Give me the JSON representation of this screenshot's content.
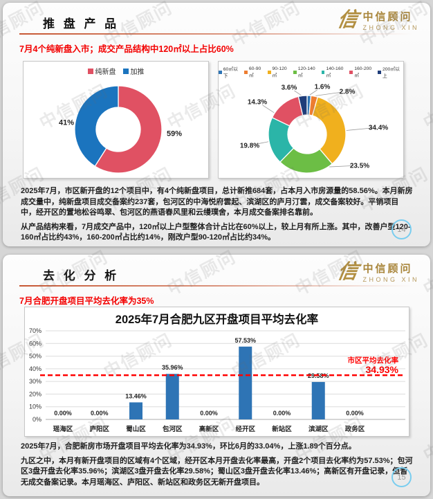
{
  "watermark_text": "中信顾问",
  "logo": {
    "mark": "信",
    "name_cn": "中信顾问",
    "name_en": "ZHONG XIN"
  },
  "slide1": {
    "title": "推 盘 产 品",
    "subtitle": "7月4个纯新盘入市；成交产品结构中120㎡以上占比60%",
    "paragraph1": "2025年7月，市区新开盘的12个项目中，有4个纯新盘项目，总计新推684套，占本月入市房源量的58.56%。本月新房成交量中，纯新盘项目成交备案约237套，包河区的中海悦府雲起、滨湖区的庐月汀雲，成交备案较好。平销项目中，经开区的置地松谷鸣翠、包河区的燕语春风里和云缦璞舍，本月成交备案排名靠前。",
    "paragraph2": "从产品结构来看，7月成交产品中，120㎡以上户型整体合计占比在60%以上，较上月有所上涨。其中，改善户型120-160㎡占比约43%，160-200㎡占比约14%，刚改户型90-120㎡占比约34%。",
    "page_number": "14"
  },
  "slide2": {
    "title": "去 化 分 析",
    "subtitle": "7月合肥开盘项目平均去化率为35%",
    "paragraph1": "2025年7月，合肥新房市场开盘项目平均去化率为34.93%，环比6月的33.04%，上涨1.89个百分点。",
    "paragraph2": "九区之中，本月有新开盘项目的区域有4个区域，经开区本月开盘去化率最高，开盘2个项目去化率约为57.53%；包河区3盘开盘去化率35.96%；滨湖区3盘开盘去化率29.58%；蜀山区3盘开盘去化率13.46%；高新区有开盘记录，但暂无成交备案记录。本月瑶海区、庐阳区、新站区和政务区无新开盘项目。",
    "page_number": "15"
  },
  "chart_data": [
    {
      "id": "new-vs-additional",
      "type": "pie",
      "donut": true,
      "legend_position": "top",
      "labels": [
        "纯新盘",
        "加推"
      ],
      "values": [
        59,
        41
      ],
      "value_labels": [
        "59%",
        "41%"
      ],
      "colors": [
        "#E05163",
        "#1B74BE"
      ]
    },
    {
      "id": "product-structure",
      "type": "pie",
      "donut": true,
      "legend_position": "top",
      "labels": [
        "60㎡以下",
        "60-90㎡",
        "90-120㎡",
        "120-140㎡",
        "140-160㎡",
        "160-200㎡",
        "200㎡以上"
      ],
      "values": [
        1.6,
        2.8,
        34.4,
        23.5,
        19.8,
        14.3,
        3.6
      ],
      "value_labels": [
        "1.6%",
        "2.8%",
        "34.4%",
        "23.5%",
        "19.8%",
        "14.3%",
        "3.6%"
      ],
      "colors": [
        "#2E75B6",
        "#ED7D31",
        "#F0B01E",
        "#6CBE45",
        "#2BB5A8",
        "#E05163",
        "#1F3D7A"
      ]
    },
    {
      "id": "absorption-by-district",
      "type": "bar",
      "title": "2025年7月合肥九区开盘项目平均去化率",
      "categories": [
        "瑶海区",
        "庐阳区",
        "蜀山区",
        "包河区",
        "高新区",
        "经开区",
        "新站区",
        "滨湖区",
        "政务区"
      ],
      "values": [
        0,
        0,
        13.46,
        35.96,
        0,
        57.53,
        0,
        29.58,
        0
      ],
      "value_labels": [
        "0.00%",
        "0.00%",
        "13.46%",
        "35.96%",
        "0.00%",
        "57.53%",
        "0.00%",
        "29.58%",
        "0.00%"
      ],
      "bar_color": "#2E74B5",
      "xlabel": "",
      "ylabel": "",
      "ylim": [
        0,
        70
      ],
      "ytick_step": 10,
      "ytick_suffix": "%",
      "grid": true,
      "legend_position": "none",
      "reference_line": {
        "value": 34.93,
        "color": "#FF0000",
        "style": "dashed",
        "label_line1": "市区平均去化率",
        "label_line2": "34.93%"
      }
    }
  ]
}
